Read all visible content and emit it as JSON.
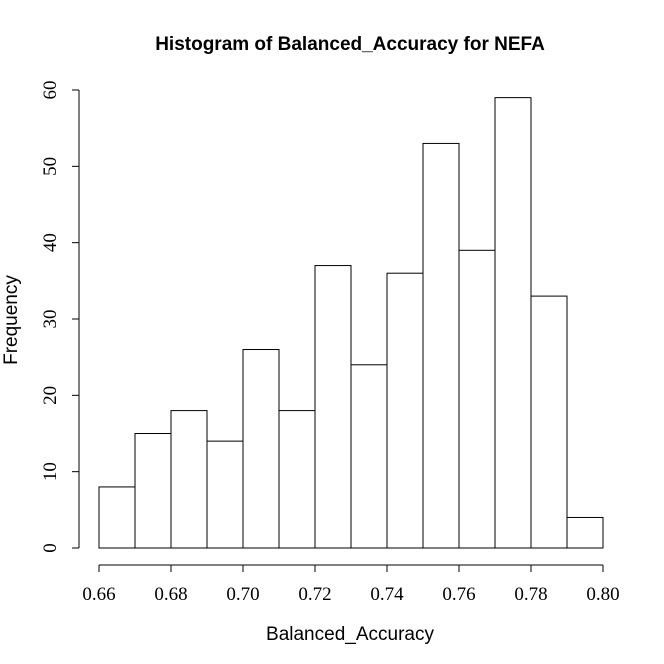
{
  "chart_data": {
    "type": "bar",
    "title": "Histogram of Balanced_Accuracy for NEFA",
    "xlabel": "Balanced_Accuracy",
    "ylabel": "Frequency",
    "bins": [
      [
        0.66,
        0.67
      ],
      [
        0.67,
        0.68
      ],
      [
        0.68,
        0.69
      ],
      [
        0.69,
        0.7
      ],
      [
        0.7,
        0.71
      ],
      [
        0.71,
        0.72
      ],
      [
        0.72,
        0.73
      ],
      [
        0.73,
        0.74
      ],
      [
        0.74,
        0.75
      ],
      [
        0.75,
        0.76
      ],
      [
        0.76,
        0.77
      ],
      [
        0.77,
        0.78
      ],
      [
        0.78,
        0.79
      ],
      [
        0.79,
        0.8
      ]
    ],
    "values": [
      8,
      15,
      18,
      14,
      26,
      18,
      37,
      24,
      36,
      53,
      39,
      59,
      33,
      4
    ],
    "xlim": [
      0.66,
      0.8
    ],
    "ylim": [
      0,
      60
    ],
    "x_ticks": [
      "0.66",
      "0.68",
      "0.70",
      "0.72",
      "0.74",
      "0.76",
      "0.78",
      "0.80"
    ],
    "y_ticks": [
      "0",
      "10",
      "20",
      "30",
      "40",
      "50",
      "60"
    ],
    "grid": false
  }
}
